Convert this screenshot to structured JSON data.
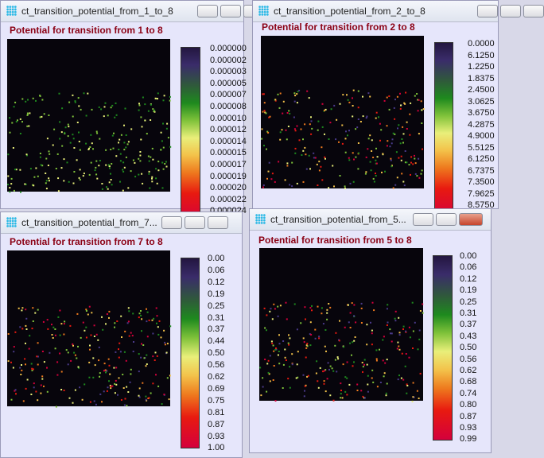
{
  "windows": [
    {
      "title": "ct_transition_potential_from_1_to_8",
      "heading": "Potential for transition from 1 to 8",
      "legend_labels": [
        "0.000000",
        "0.000002",
        "0.000003",
        "0.000005",
        "0.000007",
        "0.000008",
        "0.000010",
        "0.000012",
        "0.000014",
        "0.000015",
        "0.000017",
        "0.000019",
        "0.000020",
        "0.000022",
        "0.000024"
      ]
    },
    {
      "title": "ct_transition_potential_from_2_to_8",
      "heading": "Potential for transition from 2 to 8",
      "legend_labels": [
        "0.0000",
        "6.1250",
        "1.2250",
        "1.8375",
        "2.4500",
        "3.0625",
        "3.6750",
        "4.2875",
        "4.9000",
        "5.5125",
        "6.1250",
        "6.7375",
        "7.3500",
        "7.9625",
        "8.5750"
      ]
    },
    {
      "title": "ct_transition_potential_from_7...",
      "heading": "Potential for transition from 7 to 8",
      "legend_labels": [
        "0.00",
        "0.06",
        "0.12",
        "0.19",
        "0.25",
        "0.31",
        "0.37",
        "0.44",
        "0.50",
        "0.56",
        "0.62",
        "0.69",
        "0.75",
        "0.81",
        "0.87",
        "0.93",
        "1.00"
      ]
    },
    {
      "title": "ct_transition_potential_from_5...",
      "heading": "Potential for transition from 5 to 8",
      "legend_labels": [
        "0.00",
        "0.06",
        "0.12",
        "0.19",
        "0.25",
        "0.31",
        "0.37",
        "0.43",
        "0.50",
        "0.56",
        "0.62",
        "0.68",
        "0.74",
        "0.80",
        "0.87",
        "0.93",
        "0.99"
      ]
    }
  ]
}
